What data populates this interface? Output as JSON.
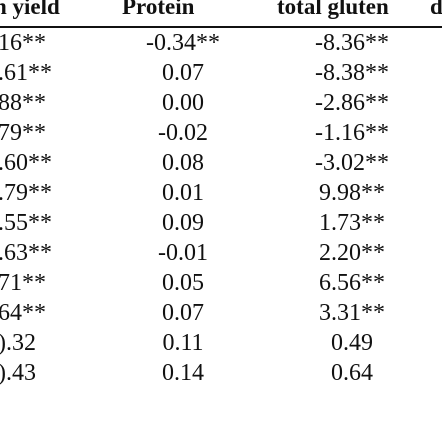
{
  "table": {
    "headers": [
      "n yield",
      "Protein",
      "total gluten",
      "d"
    ],
    "rows": [
      [
        "16**",
        "-0.34**",
        "-8.36**"
      ],
      [
        ".61**",
        "0.07",
        "-8.38**"
      ],
      [
        "88**",
        "0.00",
        "-2.86**"
      ],
      [
        "79**",
        "-0.02",
        "-1.16**"
      ],
      [
        ".60**",
        "0.08",
        "-3.02**"
      ],
      [
        ".79**",
        "0.01",
        "9.98**"
      ],
      [
        ".55**",
        "0.09",
        "1.73**"
      ],
      [
        ".63**",
        "-0.01",
        "2.20**"
      ],
      [
        "71**",
        "0.05",
        "6.56**"
      ],
      [
        "64**",
        "0.07",
        "3.31**"
      ],
      [
        ").32",
        "0.11",
        "0.49"
      ],
      [
        ").43",
        "0.14",
        "0.64"
      ]
    ]
  }
}
